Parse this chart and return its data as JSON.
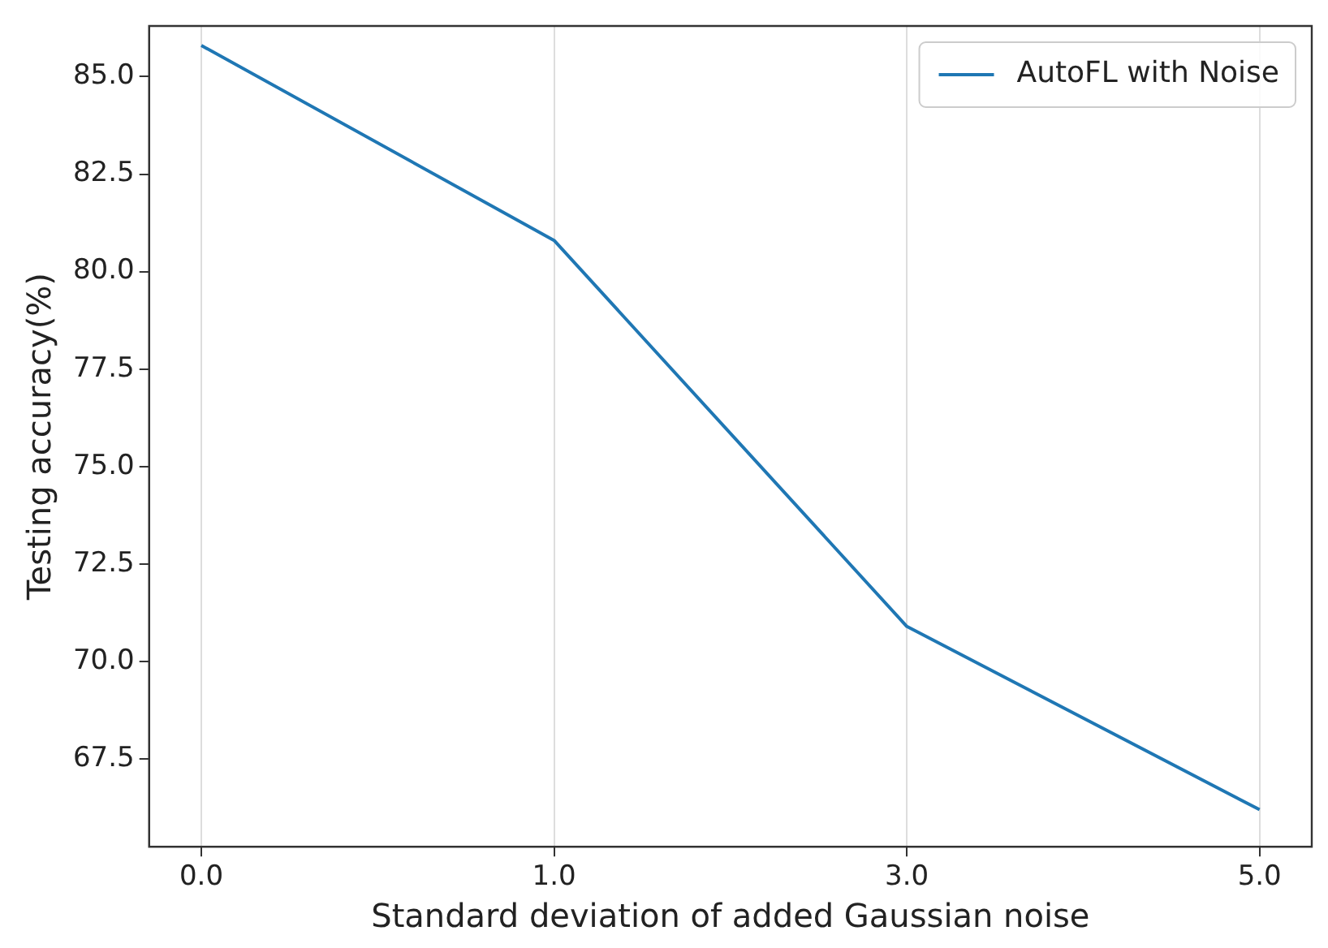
{
  "chart_data": {
    "type": "line",
    "xlabel": "Standard deviation of added Gaussian noise",
    "ylabel": "Testing accuracy(%)",
    "categories": [
      "0.0",
      "1.0",
      "3.0",
      "5.0"
    ],
    "series": [
      {
        "name": "AutoFL with Noise",
        "color": "#1f77b4",
        "values": [
          85.8,
          80.8,
          70.9,
          66.2
        ]
      }
    ],
    "ylim": [
      65.25,
      86.3
    ],
    "yticks": [
      {
        "value": 67.5,
        "label": "67.5"
      },
      {
        "value": 70,
        "label": "70.0"
      },
      {
        "value": 72.5,
        "label": "72.5"
      },
      {
        "value": 75,
        "label": "75.0"
      },
      {
        "value": 77.5,
        "label": "77.5"
      },
      {
        "value": 80,
        "label": "80.0"
      },
      {
        "value": 82.5,
        "label": "82.5"
      },
      {
        "value": 85,
        "label": "85.0"
      }
    ],
    "grid": "x",
    "legend": "top right",
    "marker": "none",
    "line_style": "solid"
  }
}
